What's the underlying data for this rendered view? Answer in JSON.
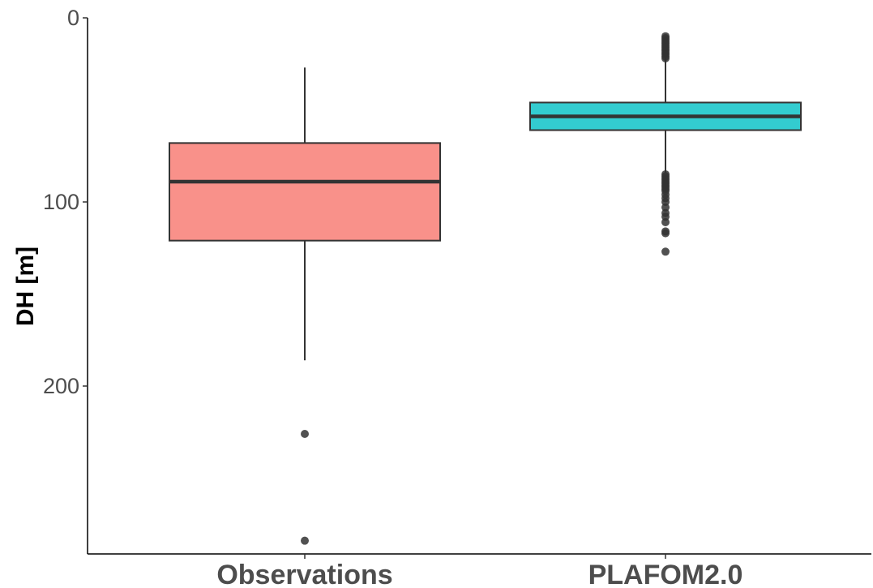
{
  "chart_data": {
    "type": "boxplot",
    "title": "",
    "xlabel": "",
    "ylabel": "DH [m]",
    "y_reversed": true,
    "ylim": [
      0,
      290
    ],
    "yticks": [
      0,
      100,
      200
    ],
    "grid": false,
    "legend": "none",
    "categories": [
      "Observations",
      "PLAFOM2.0"
    ],
    "boxes": [
      {
        "category": "Observations",
        "color": "#F8766D",
        "whisker_low": 27,
        "q1": 68,
        "median": 89,
        "q3": 121,
        "whisker_high": 186,
        "outliers": [
          226,
          284
        ]
      },
      {
        "category": "PLAFOM2.0",
        "color": "#00BFC4",
        "whisker_low": 13,
        "q1": 46,
        "median": 53.5,
        "q3": 61,
        "whisker_high": 84,
        "outliers": [
          10,
          11,
          12,
          13,
          14,
          15,
          16,
          17,
          18,
          19,
          20,
          21,
          22,
          85,
          86,
          87,
          88,
          89,
          90,
          91,
          92,
          93,
          94,
          96,
          98,
          100,
          103,
          106,
          108,
          111,
          116,
          117,
          127
        ]
      }
    ]
  }
}
